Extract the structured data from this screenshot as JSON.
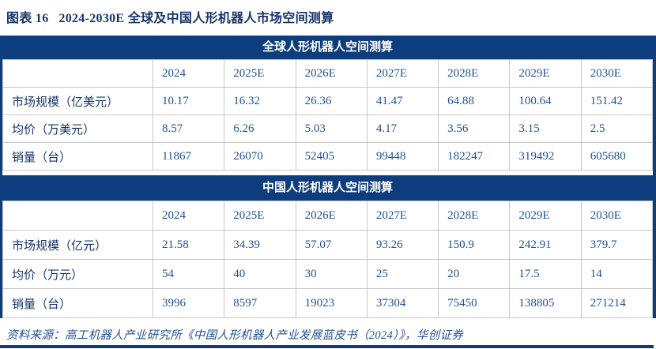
{
  "figure": {
    "title": "图表 16   2024-2030E 全球及中国人形机器人市场空间测算",
    "source": "资料来源：高工机器人产业研究所《中国人形机器人产业发展蓝皮书（2024）》，华创证券"
  },
  "colors": {
    "navy": "#0d3d7c",
    "label_text": "#17356b",
    "value_text": "#235293",
    "grid": "#c8c8c8"
  },
  "tables": [
    {
      "id": "global",
      "header": "全球人形机器人空间测算",
      "columns": [
        "",
        "2024",
        "2025E",
        "2026E",
        "2027E",
        "2028E",
        "2029E",
        "2030E"
      ],
      "rows": [
        {
          "label": "市场规模（亿美元）",
          "values": [
            "10.17",
            "16.32",
            "26.36",
            "41.47",
            "64.88",
            "100.64",
            "151.42"
          ]
        },
        {
          "label": "均价（万美元）",
          "values": [
            "8.57",
            "6.26",
            "5.03",
            "4.17",
            "3.56",
            "3.15",
            "2.5"
          ]
        },
        {
          "label": "销量（台）",
          "values": [
            "11867",
            "26070",
            "52405",
            "99448",
            "182247",
            "319492",
            "605680"
          ]
        }
      ]
    },
    {
      "id": "china",
      "header": "中国人形机器人空间测算",
      "columns": [
        "",
        "2024",
        "2025E",
        "2026E",
        "2027E",
        "2028E",
        "2029E",
        "2030E"
      ],
      "rows": [
        {
          "label": "市场规模（亿元）",
          "values": [
            "21.58",
            "34.39",
            "57.07",
            "93.26",
            "150.9",
            "242.91",
            "379.7"
          ]
        },
        {
          "label": "均价（万元）",
          "values": [
            "54",
            "40",
            "30",
            "25",
            "20",
            "17.5",
            "14"
          ]
        },
        {
          "label": "销量（台）",
          "values": [
            "3996",
            "8597",
            "19023",
            "37304",
            "75450",
            "138805",
            "271214"
          ]
        }
      ]
    }
  ],
  "chart_data": {
    "type": "table",
    "tables": [
      {
        "title": "全球人形机器人空间测算",
        "columns": [
          "2024",
          "2025E",
          "2026E",
          "2027E",
          "2028E",
          "2029E",
          "2030E"
        ],
        "series": [
          {
            "name": "市场规模（亿美元）",
            "values": [
              10.17,
              16.32,
              26.36,
              41.47,
              64.88,
              100.64,
              151.42
            ]
          },
          {
            "name": "均价（万美元）",
            "values": [
              8.57,
              6.26,
              5.03,
              4.17,
              3.56,
              3.15,
              2.5
            ]
          },
          {
            "name": "销量（台）",
            "values": [
              11867,
              26070,
              52405,
              99448,
              182247,
              319492,
              605680
            ]
          }
        ]
      },
      {
        "title": "中国人形机器人空间测算",
        "columns": [
          "2024",
          "2025E",
          "2026E",
          "2027E",
          "2028E",
          "2029E",
          "2030E"
        ],
        "series": [
          {
            "name": "市场规模（亿元）",
            "values": [
              21.58,
              34.39,
              57.07,
              93.26,
              150.9,
              242.91,
              379.7
            ]
          },
          {
            "name": "均价（万元）",
            "values": [
              54,
              40,
              30,
              25,
              20,
              17.5,
              14
            ]
          },
          {
            "name": "销量（台）",
            "values": [
              3996,
              8597,
              19023,
              37304,
              75450,
              138805,
              271214
            ]
          }
        ]
      }
    ]
  }
}
